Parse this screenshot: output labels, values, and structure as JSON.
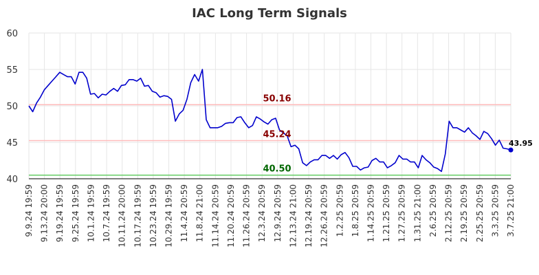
{
  "chart_data": {
    "type": "line",
    "title": "IAC Long Term Signals",
    "xlabel": "",
    "ylabel": "",
    "ylim": [
      40,
      60
    ],
    "yticks": [
      40,
      45,
      50,
      55,
      60
    ],
    "grid": true,
    "legend": "none",
    "x_tick_labels": [
      "9.9.24 19:59",
      "9.13.24 20:00",
      "9.19.24 19:59",
      "9.25.24 19:59",
      "10.1.24 19:59",
      "10.7.24 19:59",
      "10.11.24 20:00",
      "10.17.24 19:59",
      "10.23.24 19:59",
      "10.29.24 19:59",
      "11.4.24 20:59",
      "11.8.24 21:00",
      "11.14.24 20:59",
      "11.20.24 20:59",
      "11.26.24 20:59",
      "12.3.24 20:59",
      "12.9.24 20:59",
      "12.13.24 21:00",
      "12.19.24 20:59",
      "12.26.24 20:59",
      "1.2.25 20:59",
      "1.8.25 20:59",
      "1.14.25 20:59",
      "1.21.25 20:59",
      "1.27.25 20:59",
      "1.31.25 21:00",
      "2.6.25 20:59",
      "2.12.25 20:59",
      "2.19.25 20:59",
      "2.25.25 20:59",
      "3.3.25 20:59",
      "3.7.25 21:00"
    ],
    "series": [
      {
        "color": "#0000cc",
        "values": [
          50.0,
          49.2,
          50.4,
          51.2,
          52.2,
          52.8,
          53.4,
          54.0,
          54.6,
          54.3,
          54.0,
          54.0,
          53.0,
          54.6,
          54.6,
          53.8,
          51.6,
          51.7,
          51.1,
          51.6,
          51.5,
          52.0,
          52.4,
          52.0,
          52.8,
          52.9,
          53.6,
          53.6,
          53.4,
          53.8,
          52.7,
          52.8,
          52.0,
          51.8,
          51.2,
          51.4,
          51.3,
          50.9,
          47.9,
          48.9,
          49.4,
          50.9,
          53.2,
          54.3,
          53.4,
          55.0,
          48.1,
          47.0,
          47.0,
          47.0,
          47.2,
          47.6,
          47.7,
          47.7,
          48.4,
          48.5,
          47.7,
          47.0,
          47.3,
          48.5,
          48.2,
          47.8,
          47.5,
          48.1,
          48.3,
          46.7,
          46.3,
          45.9,
          44.4,
          44.6,
          44.1,
          42.2,
          41.8,
          42.3,
          42.6,
          42.6,
          43.2,
          43.2,
          42.8,
          43.2,
          42.7,
          43.3,
          43.6,
          42.9,
          41.7,
          41.7,
          41.2,
          41.5,
          41.6,
          42.5,
          42.8,
          42.3,
          42.3,
          41.5,
          41.8,
          42.2,
          43.2,
          42.7,
          42.7,
          42.3,
          42.3,
          41.5,
          43.2,
          42.6,
          42.2,
          41.6,
          41.4,
          41.0,
          43.4,
          47.9,
          47.0,
          47.0,
          46.7,
          46.4,
          47.0,
          46.3,
          45.9,
          45.4,
          46.5,
          46.2,
          45.5,
          44.6,
          45.3,
          44.2,
          44.1,
          43.95
        ]
      }
    ],
    "levels": [
      {
        "value": 50.16,
        "label": "50.16",
        "line_color": "#ffbbbb",
        "text_color": "#880000"
      },
      {
        "value": 45.24,
        "label": "45.24",
        "line_color": "#ffbbbb",
        "text_color": "#880000"
      },
      {
        "value": 40.5,
        "label": "40.50",
        "line_color": "#66cc66",
        "text_color": "#006600"
      }
    ],
    "last_value_label": "43.95"
  }
}
